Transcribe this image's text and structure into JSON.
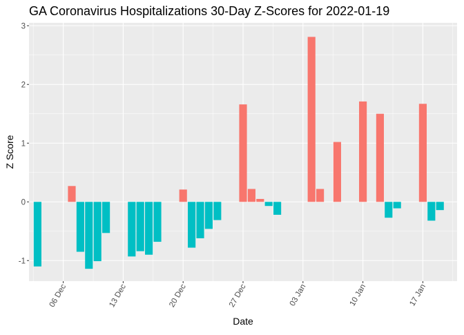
{
  "chart_data": {
    "type": "bar",
    "title": "GA Coronavirus Hospitalizations 30-Day Z-Scores for 2022-01-19",
    "xlabel": "Date",
    "ylabel": "Z Score",
    "ylim": [
      -1.35,
      3.05
    ],
    "yticks": [
      -1,
      0,
      1,
      2,
      3
    ],
    "xlim": [
      "2021-12-02",
      "2022-01-21"
    ],
    "xticks": [
      {
        "date": "2021-12-06",
        "label": "06 Dec"
      },
      {
        "date": "2021-12-13",
        "label": "13 Dec"
      },
      {
        "date": "2021-12-20",
        "label": "20 Dec"
      },
      {
        "date": "2021-12-27",
        "label": "27 Dec"
      },
      {
        "date": "2022-01-03",
        "label": "03 Jan"
      },
      {
        "date": "2022-01-10",
        "label": "10 Jan"
      },
      {
        "date": "2022-01-17",
        "label": "17 Jan"
      }
    ],
    "positive_color": "#F8766D",
    "negative_color": "#00BFC4",
    "panel_background": "#EBEBEB",
    "grid": true,
    "legend": "none",
    "points": [
      {
        "x": "2021-12-03",
        "y": -1.1
      },
      {
        "x": "2021-12-07",
        "y": 0.27
      },
      {
        "x": "2021-12-08",
        "y": -0.85
      },
      {
        "x": "2021-12-09",
        "y": -1.14
      },
      {
        "x": "2021-12-10",
        "y": -1.01
      },
      {
        "x": "2021-12-11",
        "y": -0.53
      },
      {
        "x": "2021-12-14",
        "y": -0.93
      },
      {
        "x": "2021-12-15",
        "y": -0.84
      },
      {
        "x": "2021-12-16",
        "y": -0.9
      },
      {
        "x": "2021-12-17",
        "y": -0.68
      },
      {
        "x": "2021-12-20",
        "y": 0.21
      },
      {
        "x": "2021-12-21",
        "y": -0.78
      },
      {
        "x": "2021-12-22",
        "y": -0.62
      },
      {
        "x": "2021-12-23",
        "y": -0.46
      },
      {
        "x": "2021-12-24",
        "y": -0.31
      },
      {
        "x": "2021-12-27",
        "y": 1.66
      },
      {
        "x": "2021-12-28",
        "y": 0.22
      },
      {
        "x": "2021-12-29",
        "y": 0.05
      },
      {
        "x": "2021-12-30",
        "y": -0.07
      },
      {
        "x": "2021-12-31",
        "y": -0.22
      },
      {
        "x": "2022-01-04",
        "y": 2.81
      },
      {
        "x": "2022-01-05",
        "y": 0.22
      },
      {
        "x": "2022-01-07",
        "y": 1.02
      },
      {
        "x": "2022-01-10",
        "y": 1.71
      },
      {
        "x": "2022-01-12",
        "y": 1.5
      },
      {
        "x": "2022-01-13",
        "y": -0.27
      },
      {
        "x": "2022-01-14",
        "y": -0.11
      },
      {
        "x": "2022-01-17",
        "y": 1.67
      },
      {
        "x": "2022-01-18",
        "y": -0.32
      },
      {
        "x": "2022-01-19",
        "y": -0.14
      }
    ]
  }
}
